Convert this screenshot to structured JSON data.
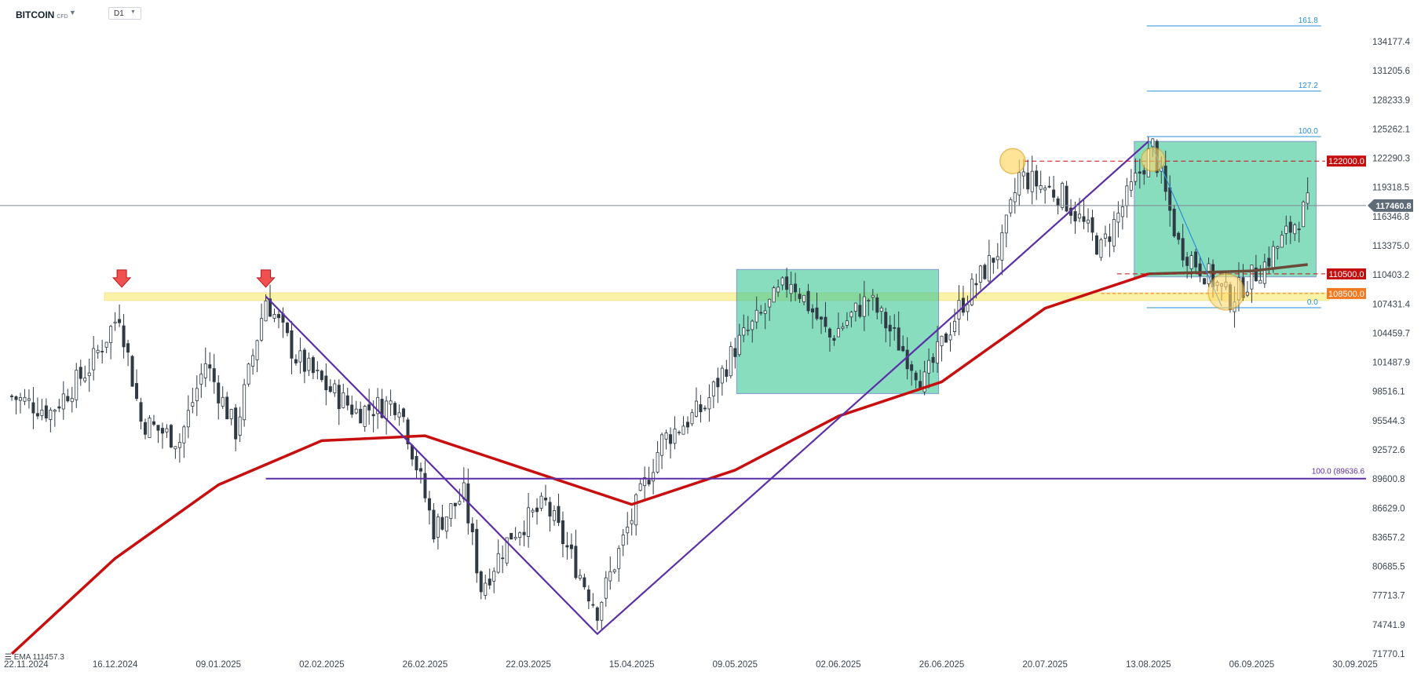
{
  "header": {
    "symbol": "BITCOIN",
    "symbol_suffix": "CFD",
    "timeframe": "D1"
  },
  "legend": {
    "ema_label": "EMA",
    "ema_value": "111457.3"
  },
  "colors": {
    "candle": "#2f3a44",
    "ema": "#c80f0f",
    "ema_recent": "#6b4a3a",
    "trendline": "#5b2fa8",
    "zone_fill": "#3cc795",
    "support_band": "#f9ee8a",
    "resistance_dash": "#e02020",
    "fib": "#2a8fd8",
    "tag_red": "#c40e0e",
    "tag_orange": "#f07a22",
    "current_tag": "#5f6b76"
  },
  "chart_data": {
    "type": "candlestick",
    "y_axis_ticks": [
      "134177.4",
      "131205.6",
      "128233.9",
      "125262.1",
      "122290.3",
      "119318.5",
      "116346.8",
      "113375.0",
      "110403.2",
      "107431.4",
      "104459.7",
      "101487.9",
      "98516.1",
      "95544.3",
      "92572.6",
      "89600.8",
      "86629.0",
      "83657.2",
      "80685.5",
      "77713.7",
      "74741.9",
      "71770.1"
    ],
    "x_axis_ticks": [
      "22.11.2024",
      "16.12.2024",
      "09.01.2025",
      "02.02.2025",
      "26.02.2025",
      "22.03.2025",
      "15.04.2025",
      "09.05.2025",
      "02.06.2025",
      "26.06.2025",
      "20.07.2025",
      "13.08.2025",
      "06.09.2025",
      "30.09.2025"
    ],
    "close_path": [
      {
        "date": "22.11.2024",
        "close": 98000
      },
      {
        "date": "01.12.2024",
        "close": 96500
      },
      {
        "date": "10.12.2024",
        "close": 101000
      },
      {
        "date": "17.12.2024",
        "close": 106500
      },
      {
        "date": "22.12.2024",
        "close": 95500
      },
      {
        "date": "31.12.2024",
        "close": 93500
      },
      {
        "date": "06.01.2025",
        "close": 101500
      },
      {
        "date": "13.01.2025",
        "close": 94500
      },
      {
        "date": "20.01.2025",
        "close": 108000
      },
      {
        "date": "27.01.2025",
        "close": 102000
      },
      {
        "date": "03.02.2025",
        "close": 99000
      },
      {
        "date": "10.02.2025",
        "close": 96500
      },
      {
        "date": "20.02.2025",
        "close": 97500
      },
      {
        "date": "28.02.2025",
        "close": 84500
      },
      {
        "date": "07.03.2025",
        "close": 88000
      },
      {
        "date": "11.03.2025",
        "close": 78500
      },
      {
        "date": "18.03.2025",
        "close": 84000
      },
      {
        "date": "26.03.2025",
        "close": 87000
      },
      {
        "date": "31.03.2025",
        "close": 82500
      },
      {
        "date": "07.04.2025",
        "close": 76300
      },
      {
        "date": "14.04.2025",
        "close": 84500
      },
      {
        "date": "22.04.2025",
        "close": 93500
      },
      {
        "date": "02.05.2025",
        "close": 97000
      },
      {
        "date": "09.05.2025",
        "close": 103000
      },
      {
        "date": "22.05.2025",
        "close": 110000
      },
      {
        "date": "31.05.2025",
        "close": 104000
      },
      {
        "date": "09.06.2025",
        "close": 108000
      },
      {
        "date": "22.06.2025",
        "close": 99500
      },
      {
        "date": "30.06.2025",
        "close": 107000
      },
      {
        "date": "10.07.2025",
        "close": 113500
      },
      {
        "date": "14.07.2025",
        "close": 120500
      },
      {
        "date": "24.07.2025",
        "close": 118500
      },
      {
        "date": "02.08.2025",
        "close": 113000
      },
      {
        "date": "14.08.2025",
        "close": 123500
      },
      {
        "date": "20.08.2025",
        "close": 113500
      },
      {
        "date": "01.09.2025",
        "close": 108000
      },
      {
        "date": "09.09.2025",
        "close": 111500
      },
      {
        "date": "19.09.2025",
        "close": 117500
      }
    ],
    "ema_path": [
      {
        "date": "22.11.2024",
        "value": 71770
      },
      {
        "date": "16.12.2024",
        "value": 81500
      },
      {
        "date": "09.01.2025",
        "value": 89000
      },
      {
        "date": "02.02.2025",
        "value": 93500
      },
      {
        "date": "26.02.2025",
        "value": 94000
      },
      {
        "date": "22.03.2025",
        "value": 90500
      },
      {
        "date": "15.04.2025",
        "value": 87000
      },
      {
        "date": "09.05.2025",
        "value": 90500
      },
      {
        "date": "02.06.2025",
        "value": 96000
      },
      {
        "date": "26.06.2025",
        "value": 99500
      },
      {
        "date": "20.07.2025",
        "value": 107000
      },
      {
        "date": "13.08.2025",
        "value": 110500
      },
      {
        "date": "06.09.2025",
        "value": 110800
      },
      {
        "date": "19.09.2025",
        "value": 111457.3
      }
    ],
    "levels": [
      {
        "label": "122000.0",
        "value": 122000,
        "style": "dashed-red"
      },
      {
        "label": "110500.0",
        "value": 110500,
        "style": "dashed-red"
      },
      {
        "label": "108500.0",
        "value": 108500,
        "style": "orange-tag"
      }
    ],
    "current_price": {
      "label": "117460.8",
      "value": 117460.8
    },
    "horizontal_line": {
      "label": "100.0 (89636.6",
      "value": 89636.6
    },
    "fibonacci": [
      {
        "label": "161.8"
      },
      {
        "label": "127.2"
      },
      {
        "label": "100.0"
      },
      {
        "label": "0.0"
      }
    ]
  }
}
